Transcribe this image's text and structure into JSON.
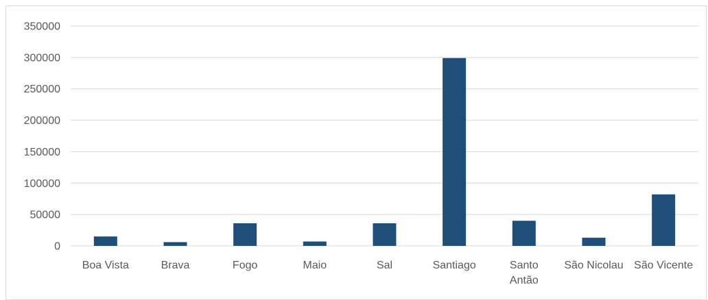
{
  "chart_data": {
    "type": "bar",
    "title": "",
    "xlabel": "",
    "ylabel": "",
    "categories": [
      "Boa Vista",
      "Brava",
      "Fogo",
      "Maio",
      "Sal",
      "Santiago",
      "Santo Antão",
      "São Nicolau",
      "São Vicente"
    ],
    "category_label_lines": [
      [
        "Boa Vista"
      ],
      [
        "Brava"
      ],
      [
        "Fogo"
      ],
      [
        "Maio"
      ],
      [
        "Sal"
      ],
      [
        "Santiago"
      ],
      [
        "Santo",
        "Antão"
      ],
      [
        "São Nicolau"
      ],
      [
        "São Vicente"
      ]
    ],
    "values": [
      15000,
      6000,
      36000,
      7000,
      36000,
      299000,
      40000,
      13000,
      82000
    ],
    "ylim": [
      0,
      350000
    ],
    "yticks": [
      0,
      50000,
      100000,
      150000,
      200000,
      250000,
      300000,
      350000
    ],
    "ytick_labels": [
      "0",
      "50000",
      "100000",
      "150000",
      "200000",
      "250000",
      "300000",
      "350000"
    ],
    "grid": true,
    "legend": "none",
    "bar_color": "#1f4e79",
    "grid_color": "#d9d9d9",
    "label_color": "#595959"
  }
}
